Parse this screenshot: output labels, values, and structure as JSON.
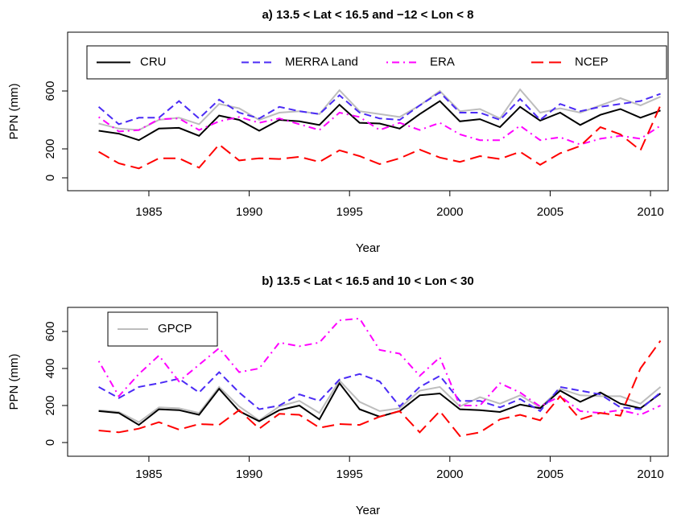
{
  "chart_data": [
    {
      "type": "line",
      "title": "a) 13.5 < Lat < 16.5 and −12 < Lon < 8",
      "xlabel": "Year",
      "ylabel": "PPN (mm)",
      "x": [
        1982.5,
        1983.5,
        1984.5,
        1985.5,
        1986.5,
        1987.5,
        1988.5,
        1989.5,
        1990.5,
        1991.5,
        1992.5,
        1993.5,
        1994.5,
        1995.5,
        1996.5,
        1997.5,
        1998.5,
        1999.5,
        2000.5,
        2001.5,
        2002.5,
        2003.5,
        2004.5,
        2005.5,
        2006.5,
        2007.5,
        2008.5,
        2009.5,
        2010.5
      ],
      "xlim": [
        1980.95,
        2010.88
      ],
      "xticks": [
        1985,
        1990,
        1995,
        2000,
        2005,
        2010
      ],
      "ylim": [
        -89,
        1006
      ],
      "yticks": [
        0,
        200,
        600
      ],
      "legend": "top",
      "series": [
        {
          "color": "#bdbdbd",
          "linestyle": "solid",
          "values": [
            375,
            340,
            330,
            400,
            415,
            370,
            510,
            480,
            400,
            450,
            460,
            440,
            605,
            460,
            440,
            420,
            500,
            600,
            460,
            475,
            410,
            610,
            450,
            480,
            450,
            500,
            550,
            500,
            560
          ]
        },
        {
          "name": "CRU",
          "color": "#000000",
          "linestyle": "solid",
          "values": [
            325,
            305,
            260,
            340,
            345,
            290,
            430,
            400,
            325,
            400,
            390,
            365,
            505,
            380,
            375,
            340,
            440,
            530,
            390,
            405,
            350,
            490,
            395,
            450,
            365,
            435,
            475,
            415,
            465
          ]
        },
        {
          "name": "MERRA Land",
          "color": "#4b2bf5",
          "linestyle": "dashed",
          "values": [
            490,
            370,
            415,
            415,
            530,
            410,
            540,
            450,
            410,
            490,
            460,
            440,
            570,
            450,
            410,
            400,
            500,
            590,
            450,
            450,
            400,
            545,
            400,
            510,
            460,
            490,
            510,
            530,
            580
          ]
        },
        {
          "name": "ERA",
          "color": "#ff00ff",
          "linestyle": "dotdash",
          "values": [
            420,
            320,
            330,
            405,
            410,
            330,
            390,
            420,
            380,
            410,
            370,
            330,
            450,
            420,
            330,
            380,
            330,
            380,
            300,
            260,
            260,
            360,
            260,
            280,
            230,
            270,
            290,
            270,
            360
          ]
        },
        {
          "name": "NCEP",
          "color": "#ff0000",
          "linestyle": "longdash",
          "values": [
            180,
            100,
            65,
            135,
            135,
            70,
            230,
            120,
            135,
            130,
            145,
            110,
            190,
            150,
            95,
            135,
            195,
            140,
            110,
            150,
            130,
            180,
            90,
            170,
            220,
            350,
            300,
            190,
            500
          ]
        }
      ]
    },
    {
      "type": "line",
      "title": "b) 13.5 < Lat < 16.5 and 10 < Lon < 30",
      "xlabel": "Year",
      "ylabel": "PPN (mm)",
      "x": [
        1982.5,
        1983.5,
        1984.5,
        1985.5,
        1986.5,
        1987.5,
        1988.5,
        1989.5,
        1990.5,
        1991.5,
        1992.5,
        1993.5,
        1994.5,
        1995.5,
        1996.5,
        1997.5,
        1998.5,
        1999.5,
        2000.5,
        2001.5,
        2002.5,
        2003.5,
        2004.5,
        2005.5,
        2006.5,
        2007.5,
        2008.5,
        2009.5,
        2010.5
      ],
      "xlim": [
        1980.95,
        2010.88
      ],
      "xticks": [
        1985,
        1990,
        1995,
        2000,
        2005,
        2010
      ],
      "ylim": [
        -74,
        730
      ],
      "yticks": [
        0,
        200,
        400,
        600
      ],
      "legend": "top left",
      "series": [
        {
          "name": "GPCP",
          "color": "#bdbdbd",
          "linestyle": "solid",
          "values": [
            175,
            165,
            110,
            190,
            185,
            160,
            300,
            195,
            120,
            195,
            225,
            160,
            335,
            220,
            170,
            185,
            280,
            300,
            195,
            245,
            210,
            255,
            190,
            290,
            255,
            250,
            250,
            210,
            300
          ]
        },
        {
          "color": "#000000",
          "linestyle": "solid",
          "values": [
            170,
            160,
            95,
            180,
            175,
            150,
            290,
            170,
            115,
            175,
            200,
            125,
            320,
            180,
            140,
            170,
            255,
            265,
            180,
            175,
            165,
            205,
            185,
            280,
            220,
            270,
            210,
            185,
            265
          ]
        },
        {
          "color": "#4b2bf5",
          "linestyle": "dashed",
          "values": [
            300,
            240,
            300,
            320,
            345,
            270,
            380,
            270,
            180,
            200,
            260,
            225,
            340,
            370,
            330,
            195,
            300,
            360,
            225,
            225,
            190,
            235,
            170,
            300,
            280,
            260,
            190,
            180,
            270
          ]
        },
        {
          "color": "#ff00ff",
          "linestyle": "dotdash",
          "values": [
            440,
            250,
            370,
            470,
            330,
            420,
            510,
            380,
            400,
            540,
            520,
            540,
            660,
            670,
            500,
            480,
            360,
            460,
            200,
            200,
            320,
            270,
            195,
            250,
            170,
            160,
            175,
            150,
            200
          ]
        },
        {
          "color": "#ff0000",
          "linestyle": "longdash",
          "values": [
            65,
            55,
            75,
            110,
            70,
            100,
            95,
            175,
            75,
            155,
            150,
            80,
            100,
            95,
            140,
            170,
            55,
            170,
            35,
            55,
            125,
            150,
            120,
            250,
            125,
            160,
            145,
            400,
            550
          ]
        }
      ]
    }
  ]
}
